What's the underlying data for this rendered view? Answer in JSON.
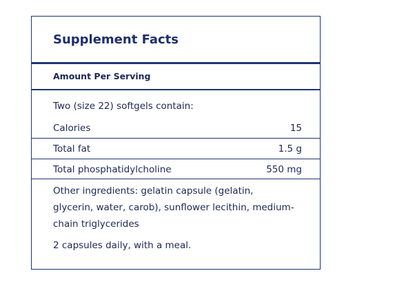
{
  "title": "Supplement Facts",
  "amount_per_serving": "Amount Per Serving",
  "serving_size": "Two (size 22) softgels contain:",
  "rows": [
    {
      "label": "Calories",
      "amount": "15"
    },
    {
      "label": "Total fat",
      "amount": "1.5 g"
    },
    {
      "label": "Total phosphatidylcholine",
      "amount": "550 mg"
    }
  ],
  "other_ingredients": "Other ingredients: gelatin capsule (gelatin, glycerin, water, carob), sunflower lecithin, medium-chain triglycerides",
  "directions": "2 capsules daily, with a meal."
}
